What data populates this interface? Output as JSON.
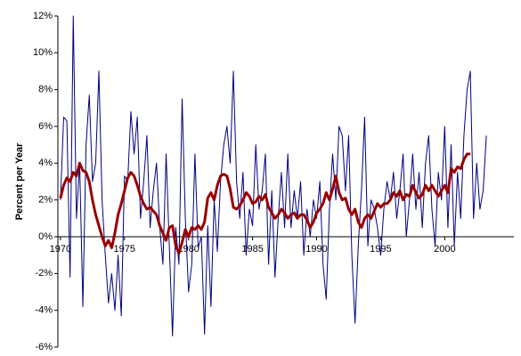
{
  "chart_data": {
    "type": "line",
    "y_label": "Percent per Year",
    "x": [
      1970,
      1970.25,
      1970.5,
      1970.75,
      1971,
      1971.25,
      1971.5,
      1971.75,
      1972,
      1972.25,
      1972.5,
      1972.75,
      1973,
      1973.25,
      1973.5,
      1973.75,
      1974,
      1974.25,
      1974.5,
      1974.75,
      1975,
      1975.25,
      1975.5,
      1975.75,
      1976,
      1976.25,
      1976.5,
      1976.75,
      1977,
      1977.25,
      1977.5,
      1977.75,
      1978,
      1978.25,
      1978.5,
      1978.75,
      1979,
      1979.25,
      1979.5,
      1979.75,
      1980,
      1980.25,
      1980.5,
      1980.75,
      1981,
      1981.25,
      1981.5,
      1981.75,
      1982,
      1982.25,
      1982.5,
      1982.75,
      1983,
      1983.25,
      1983.5,
      1983.75,
      1984,
      1984.25,
      1984.5,
      1984.75,
      1985,
      1985.25,
      1985.5,
      1985.75,
      1986,
      1986.25,
      1986.5,
      1986.75,
      1987,
      1987.25,
      1987.5,
      1987.75,
      1988,
      1988.25,
      1988.5,
      1988.75,
      1989,
      1989.25,
      1989.5,
      1989.75,
      1990,
      1990.25,
      1990.5,
      1990.75,
      1991,
      1991.25,
      1991.5,
      1991.75,
      1992,
      1992.25,
      1992.5,
      1992.75,
      1993,
      1993.25,
      1993.5,
      1993.75,
      1994,
      1994.25,
      1994.5,
      1994.75,
      1995,
      1995.25,
      1995.5,
      1995.75,
      1996,
      1996.25,
      1996.5,
      1996.75,
      1997,
      1997.25,
      1997.5,
      1997.75,
      1998,
      1998.25,
      1998.5,
      1998.75,
      1999,
      1999.25,
      1999.5,
      1999.75,
      2000,
      2000.25,
      2000.5,
      2000.75,
      2001,
      2001.25,
      2001.5,
      2001.75,
      2002,
      2002.25,
      2002.5,
      2002.75,
      2003,
      2003.25
    ],
    "series": [
      {
        "color": "#000080",
        "width": 1,
        "values": [
          2,
          6.5,
          6.3,
          -2.2,
          12,
          1,
          4,
          -3.8,
          5,
          7.7,
          3,
          4,
          9,
          2,
          -1,
          -3.6,
          -2,
          -4,
          -1,
          -4.3,
          3.3,
          3,
          6.8,
          4.5,
          6.5,
          1,
          3,
          5.5,
          0.5,
          2.5,
          4,
          0.5,
          -1.5,
          4.5,
          -0.5,
          -5.4,
          0.5,
          -1.5,
          7.5,
          1,
          -3,
          -1.5,
          4.5,
          -0.6,
          0,
          -5.3,
          0.6,
          -3.8,
          2,
          -0.8,
          3,
          5,
          6,
          4,
          9,
          3,
          1,
          3.5,
          -1,
          1.5,
          0.6,
          5,
          1.5,
          2.5,
          4.5,
          -1.5,
          2.5,
          -2.2,
          1,
          3.5,
          0.5,
          4.5,
          0.5,
          2.5,
          1,
          3,
          -1,
          1.5,
          0,
          2,
          1,
          3,
          -1.5,
          -3.4,
          1.5,
          4.5,
          2,
          6,
          5.5,
          2.5,
          5.5,
          -1,
          -4.7,
          -0.5,
          2.5,
          6.5,
          -0.5,
          2,
          1.5,
          0.5,
          -1,
          1.5,
          3,
          2,
          3.5,
          1,
          2.5,
          4.5,
          0,
          2,
          4.5,
          1.5,
          3.5,
          0.5,
          4,
          5.5,
          1.5,
          -0.5,
          3.5,
          2,
          6,
          0.5,
          5,
          -0.5,
          3.5,
          1,
          5.5,
          8,
          9,
          1,
          4,
          1.5,
          2.5,
          5.5
        ]
      },
      {
        "color": "#990000",
        "width": 3,
        "values": [
          2.1,
          2.8,
          3.2,
          3.0,
          3.5,
          3.3,
          4.0,
          3.6,
          3.5,
          3.0,
          2.0,
          1.2,
          0.6,
          0.0,
          -0.5,
          -0.2,
          -0.6,
          0.2,
          1.2,
          1.8,
          2.5,
          3.2,
          3.5,
          3.3,
          2.8,
          2.2,
          1.8,
          1.5,
          1.6,
          1.4,
          1.2,
          0.6,
          0.2,
          -0.2,
          0.5,
          0.6,
          -0.5,
          -0.9,
          -0.3,
          0.4,
          0.0,
          0.5,
          0.4,
          0.6,
          0.4,
          0.8,
          2.1,
          2.4,
          2.0,
          2.8,
          3.3,
          3.4,
          3.3,
          2.6,
          1.6,
          1.5,
          1.7,
          2.0,
          2.4,
          2.2,
          1.8,
          1.9,
          2.2,
          2.0,
          2.3,
          1.6,
          1.3,
          1.0,
          1.2,
          1.5,
          1.3,
          1.0,
          1.2,
          1.3,
          1.0,
          1.2,
          1.2,
          0.9,
          0.5,
          0.8,
          1.3,
          1.5,
          1.8,
          2.4,
          2.0,
          2.6,
          3.3,
          2.4,
          2.0,
          2.1,
          1.5,
          1.2,
          1.5,
          0.8,
          0.5,
          1.0,
          1.2,
          1.0,
          1.4,
          1.8,
          1.6,
          1.8,
          1.8,
          2.0,
          2.4,
          2.2,
          2.5,
          2.0,
          2.3,
          2.2,
          2.8,
          2.4,
          2.1,
          2.3,
          2.8,
          2.5,
          2.8,
          2.5,
          2.2,
          2.5,
          2.8,
          2.4,
          3.7,
          3.5,
          3.8,
          3.7,
          4.2,
          4.5,
          4.5,
          null,
          null,
          null,
          null,
          null
        ]
      }
    ],
    "xlim": [
      1969.8,
      2005.4
    ],
    "xticks": [
      1970,
      1975,
      1980,
      1985,
      1990,
      1995,
      2000
    ],
    "ylim": [
      -6,
      12
    ],
    "yticks": [
      {
        "value": -6,
        "label": "-6%"
      },
      {
        "value": -4,
        "label": "-4%"
      },
      {
        "value": -2,
        "label": "-2%"
      },
      {
        "value": 0,
        "label": "0%"
      },
      {
        "value": 2,
        "label": "2%"
      },
      {
        "value": 4,
        "label": "4%"
      },
      {
        "value": 6,
        "label": "6%"
      },
      {
        "value": 8,
        "label": "8%"
      },
      {
        "value": 10,
        "label": "10%"
      },
      {
        "value": 12,
        "label": "12%"
      }
    ],
    "grid": false
  }
}
